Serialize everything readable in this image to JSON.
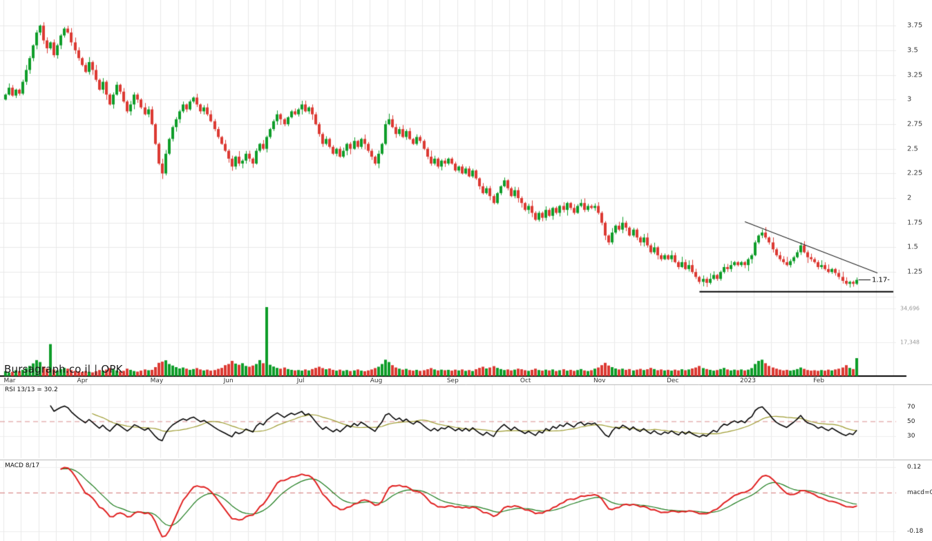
{
  "watermark": {
    "site": "Bursagraph.co.il",
    "separator": "|",
    "symbol": "OPK"
  },
  "chart_data": {
    "type": "candlestick",
    "symbol": "OPK",
    "x_axis": {
      "month_labels": [
        {
          "label": "Mar",
          "index": 0
        },
        {
          "label": "Apr",
          "index": 21
        },
        {
          "label": "May",
          "index": 42
        },
        {
          "label": "Jun",
          "index": 63
        },
        {
          "label": "Jul",
          "index": 84
        },
        {
          "label": "Aug",
          "index": 105
        },
        {
          "label": "Sep",
          "index": 127
        },
        {
          "label": "Oct",
          "index": 148
        },
        {
          "label": "Nov",
          "index": 169
        },
        {
          "label": "Dec",
          "index": 190
        },
        {
          "label": "2023",
          "index": 211
        },
        {
          "label": "Feb",
          "index": 232
        }
      ]
    },
    "price_panel": {
      "y_range": [
        0.95,
        4.01
      ],
      "grid_step": 0.25,
      "tick_values": [
        3.75,
        3.5,
        3.25,
        3,
        2.75,
        2.5,
        2.25,
        2,
        1.75,
        1.5,
        1.25
      ],
      "tick_labels": [
        "3.75",
        "3.5",
        "3.25",
        "3",
        "2.75",
        "2.5",
        "2.25",
        "2",
        "1.75",
        "1.5",
        "1.25"
      ],
      "first_open": 3.0,
      "last_price_label": "1.17-",
      "closes": [
        3.05,
        3.12,
        3.04,
        3.1,
        3.06,
        3.18,
        3.3,
        3.42,
        3.55,
        3.68,
        3.75,
        3.6,
        3.52,
        3.58,
        3.45,
        3.55,
        3.65,
        3.72,
        3.68,
        3.58,
        3.5,
        3.42,
        3.35,
        3.28,
        3.38,
        3.3,
        3.2,
        3.1,
        3.18,
        3.05,
        2.95,
        3.05,
        3.15,
        3.08,
        2.98,
        2.88,
        2.95,
        3.05,
        3.0,
        2.92,
        2.85,
        2.9,
        2.75,
        2.55,
        2.35,
        2.25,
        2.45,
        2.6,
        2.72,
        2.8,
        2.88,
        2.95,
        2.9,
        2.98,
        3.02,
        2.95,
        2.88,
        2.92,
        2.85,
        2.78,
        2.7,
        2.62,
        2.55,
        2.48,
        2.4,
        2.32,
        2.42,
        2.35,
        2.38,
        2.45,
        2.4,
        2.35,
        2.48,
        2.55,
        2.5,
        2.62,
        2.7,
        2.78,
        2.85,
        2.8,
        2.75,
        2.82,
        2.88,
        2.85,
        2.9,
        2.95,
        2.88,
        2.92,
        2.85,
        2.75,
        2.65,
        2.55,
        2.6,
        2.52,
        2.45,
        2.5,
        2.42,
        2.48,
        2.55,
        2.5,
        2.58,
        2.52,
        2.6,
        2.55,
        2.48,
        2.42,
        2.35,
        2.45,
        2.55,
        2.75,
        2.8,
        2.72,
        2.65,
        2.7,
        2.62,
        2.68,
        2.6,
        2.55,
        2.62,
        2.58,
        2.5,
        2.42,
        2.35,
        2.4,
        2.32,
        2.38,
        2.35,
        2.4,
        2.35,
        2.28,
        2.32,
        2.25,
        2.3,
        2.22,
        2.28,
        2.2,
        2.12,
        2.05,
        2.1,
        2.02,
        1.95,
        2.05,
        2.12,
        2.18,
        2.1,
        2.02,
        2.08,
        2.0,
        1.95,
        1.88,
        1.92,
        1.85,
        1.78,
        1.85,
        1.8,
        1.88,
        1.82,
        1.9,
        1.85,
        1.92,
        1.88,
        1.95,
        1.9,
        1.85,
        1.92,
        1.95,
        1.88,
        1.92,
        1.9,
        1.92,
        1.85,
        1.75,
        1.62,
        1.55,
        1.65,
        1.72,
        1.68,
        1.75,
        1.7,
        1.62,
        1.68,
        1.6,
        1.55,
        1.6,
        1.52,
        1.45,
        1.5,
        1.42,
        1.38,
        1.42,
        1.38,
        1.42,
        1.35,
        1.3,
        1.35,
        1.28,
        1.32,
        1.25,
        1.2,
        1.15,
        1.18,
        1.14,
        1.18,
        1.22,
        1.18,
        1.25,
        1.3,
        1.28,
        1.32,
        1.35,
        1.32,
        1.35,
        1.32,
        1.38,
        1.42,
        1.55,
        1.62,
        1.65,
        1.6,
        1.55,
        1.48,
        1.42,
        1.38,
        1.35,
        1.32,
        1.36,
        1.4,
        1.45,
        1.52,
        1.45,
        1.4,
        1.38,
        1.35,
        1.3,
        1.32,
        1.28,
        1.25,
        1.28,
        1.24,
        1.2,
        1.16,
        1.13,
        1.15,
        1.13,
        1.17
      ],
      "annotations": {
        "trendline_down": {
          "i1": 212,
          "p1": 1.76,
          "i2": 250,
          "p2": 1.24
        },
        "support_line": {
          "i1": 199,
          "i2": 255,
          "price": 1.05
        },
        "last_price_marker": {
          "price": 1.17
        }
      }
    },
    "volume_panel": {
      "tick_values": [
        34696,
        17348
      ],
      "tick_labels": [
        "34,696",
        "17,348"
      ],
      "volumes": [
        2500,
        1800,
        2200,
        3000,
        2600,
        3200,
        4100,
        5200,
        6500,
        8200,
        7200,
        4800,
        3900,
        16400,
        3400,
        2900,
        3600,
        4200,
        3800,
        3100,
        2700,
        2400,
        2100,
        2600,
        2200,
        1900,
        2500,
        3100,
        2800,
        3300,
        4100,
        3600,
        2900,
        2500,
        2700,
        3800,
        3200,
        2600,
        2300,
        2800,
        3400,
        3000,
        3200,
        4600,
        6800,
        7400,
        8100,
        6200,
        5400,
        4600,
        3900,
        4400,
        3800,
        3200,
        3600,
        4100,
        3400,
        2900,
        3300,
        2800,
        3100,
        3700,
        4200,
        5600,
        6200,
        7800,
        6400,
        5800,
        6600,
        5200,
        4800,
        5400,
        6200,
        8200,
        6600,
        35400,
        5800,
        4900,
        4200,
        3800,
        4400,
        3600,
        3200,
        2900,
        3100,
        2800,
        3400,
        2900,
        3600,
        4200,
        4800,
        4100,
        3500,
        3900,
        3200,
        2800,
        3300,
        2700,
        3100,
        2600,
        2900,
        3400,
        2800,
        2500,
        2900,
        3400,
        4100,
        4800,
        6200,
        8400,
        7200,
        5600,
        4400,
        3800,
        3300,
        3700,
        3100,
        2800,
        3200,
        2700,
        3000,
        3500,
        4100,
        3400,
        2900,
        3300,
        3000,
        3200,
        2800,
        3300,
        2900,
        3400,
        2700,
        3100,
        2600,
        3500,
        4200,
        4800,
        3900,
        4400,
        5100,
        4200,
        3600,
        3100,
        3400,
        2900,
        3300,
        3800,
        3500,
        3000,
        2700,
        3200,
        3800,
        3100,
        2800,
        3300,
        2900,
        3400,
        2600,
        3000,
        3500,
        2800,
        3200,
        2700,
        3100,
        3600,
        2900,
        2600,
        3000,
        3800,
        4400,
        5600,
        6800,
        5400,
        4600,
        3900,
        3400,
        3800,
        3200,
        3600,
        2900,
        3300,
        3700,
        3100,
        3500,
        4200,
        3600,
        3000,
        3400,
        2900,
        3200,
        2800,
        3300,
        2900,
        3500,
        3000,
        3400,
        3900,
        4400,
        5200,
        4100,
        3600,
        3200,
        2800,
        3100,
        3600,
        4200,
        3400,
        2900,
        3300,
        3000,
        3400,
        2900,
        3300,
        4100,
        6200,
        7800,
        8400,
        6600,
        5200,
        4400,
        3800,
        3300,
        2900,
        3200,
        2800,
        3100,
        3600,
        4400,
        3700,
        3100,
        2800,
        3000,
        2700,
        3100,
        2800,
        3300,
        2900,
        3400,
        3800,
        4400,
        5600,
        4200,
        3600,
        9200
      ]
    },
    "rsi_panel": {
      "label": "RSI 13/13 = 30.2",
      "period": 13,
      "ma_period": 13,
      "last_value": 30.2,
      "range": [
        0,
        100
      ],
      "midline": 50,
      "tick_values": [
        70,
        50,
        30
      ],
      "tick_labels": [
        "70",
        "50",
        "30"
      ]
    },
    "macd_panel": {
      "label": "MACD 8/17",
      "fast": 8,
      "slow": 17,
      "signal": 9,
      "zero_line": 0,
      "range": [
        -0.225,
        0.15
      ],
      "tick_values": [
        0.12,
        0,
        -0.18
      ],
      "tick_labels": [
        "0.12",
        "macd=0",
        "-0.18"
      ]
    },
    "colors": {
      "up": "#0f9d2a",
      "down": "#dc3a33",
      "rsi_line": "#000000",
      "rsi_ma": "#9c9a2e",
      "macd_line": "#e02020",
      "macd_signal": "#1a7a1a",
      "dashed": "#d98c8c",
      "grid": "#e8e8e8",
      "grid_light": "#ededed",
      "separator": "#b5b5b5",
      "axis_line": "#000000",
      "trendline": "#000000"
    }
  }
}
